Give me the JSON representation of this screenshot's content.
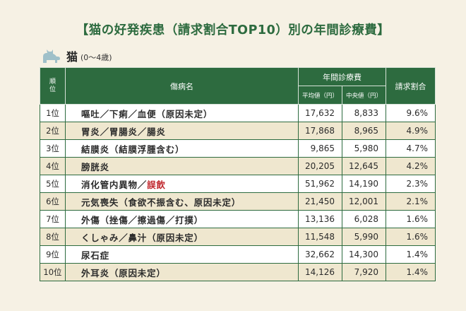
{
  "title": "【猫の好発疾患（請求割合TOP10）別の年間診療費】",
  "subheading": {
    "label": "猫",
    "age": "(0～4歳)",
    "icon": "cat-icon"
  },
  "table": {
    "headers": {
      "rank": "順位",
      "disease": "傷病名",
      "annual_cost": "年間診療費",
      "average": "平均値（円）",
      "median": "中央値（円）",
      "claim_ratio": "請求割合"
    },
    "rows": [
      {
        "rank": "1位",
        "name": "嘔吐／下痢／血便（原因未定）",
        "name_highlight": "",
        "average": "17,632",
        "median": "8,833",
        "ratio": "9.6%"
      },
      {
        "rank": "2位",
        "name": "胃炎／胃腸炎／腸炎",
        "name_highlight": "",
        "average": "17,868",
        "median": "8,965",
        "ratio": "4.9%"
      },
      {
        "rank": "3位",
        "name": "結膜炎（結膜浮腫含む）",
        "name_highlight": "",
        "average": "9,865",
        "median": "5,980",
        "ratio": "4.7%"
      },
      {
        "rank": "4位",
        "name": "膀胱炎",
        "name_highlight": "",
        "average": "20,205",
        "median": "12,645",
        "ratio": "4.2%"
      },
      {
        "rank": "5位",
        "name": "消化管内異物／",
        "name_highlight": "誤飲",
        "average": "51,962",
        "median": "14,190",
        "ratio": "2.3%"
      },
      {
        "rank": "6位",
        "name": "元気喪失（食欲不振含む、原因未定）",
        "name_highlight": "",
        "average": "21,450",
        "median": "12,001",
        "ratio": "2.1%"
      },
      {
        "rank": "7位",
        "name": "外傷（挫傷／擦過傷／打撲）",
        "name_highlight": "",
        "average": "13,136",
        "median": "6,028",
        "ratio": "1.6%"
      },
      {
        "rank": "8位",
        "name": "くしゃみ／鼻汁（原因未定）",
        "name_highlight": "",
        "average": "11,548",
        "median": "5,990",
        "ratio": "1.6%"
      },
      {
        "rank": "9位",
        "name": "尿石症",
        "name_highlight": "",
        "average": "32,662",
        "median": "14,300",
        "ratio": "1.4%"
      },
      {
        "rank": "10位",
        "name": "外耳炎（原因未定）",
        "name_highlight": "",
        "average": "14,126",
        "median": "7,920",
        "ratio": "1.4%"
      }
    ]
  },
  "colors": {
    "accent": "#2d6b3f",
    "highlight": "#c0272d",
    "row_alt": "#efe7cf",
    "background": "#f6f1e4"
  }
}
